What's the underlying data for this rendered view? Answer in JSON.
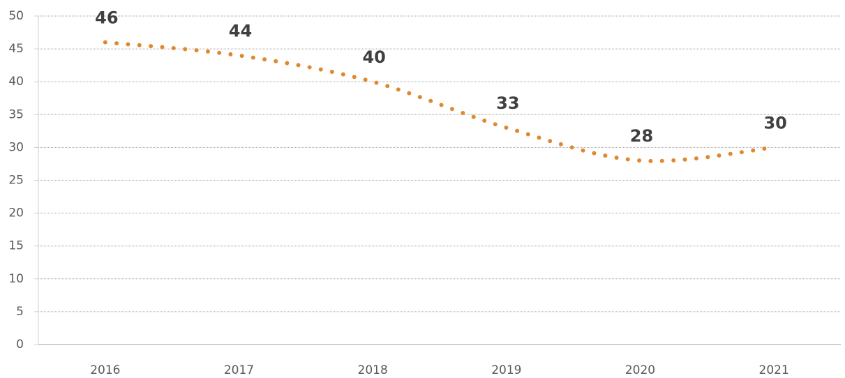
{
  "chart_data": {
    "type": "line",
    "categories": [
      "2016",
      "2017",
      "2018",
      "2019",
      "2020",
      "2021"
    ],
    "values": [
      46,
      44,
      40,
      33,
      28,
      30
    ],
    "color": "#e0882f",
    "ylim": [
      0,
      50
    ],
    "yticks": [
      0,
      5,
      10,
      15,
      20,
      25,
      30,
      35,
      40,
      45,
      50
    ],
    "grid": true
  }
}
